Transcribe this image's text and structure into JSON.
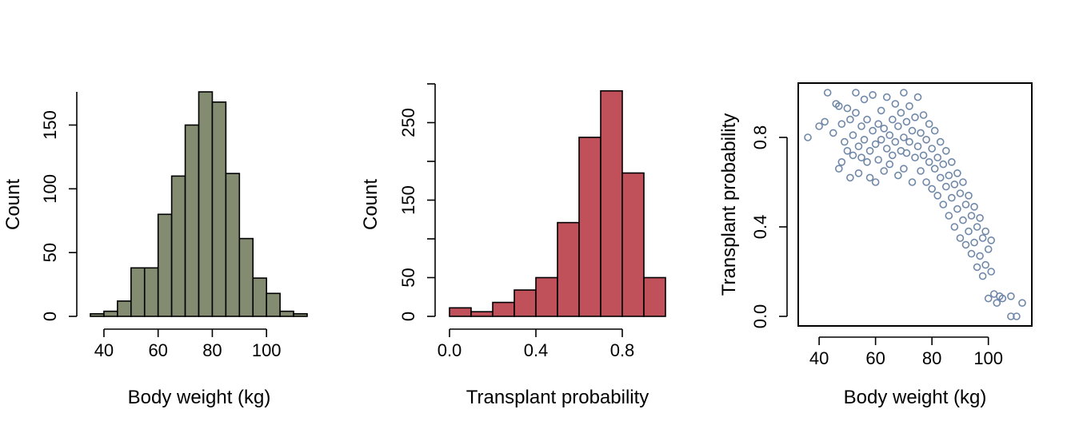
{
  "chart_data": [
    {
      "type": "bar",
      "subtype": "histogram",
      "title": "",
      "xlabel": "Body weight (kg)",
      "ylabel": "Count",
      "fill_color": "#838c70",
      "bin_edges": [
        35,
        40,
        45,
        50,
        55,
        60,
        65,
        70,
        75,
        80,
        85,
        90,
        95,
        100,
        105,
        110,
        115
      ],
      "values": [
        2,
        4,
        12,
        38,
        38,
        80,
        110,
        150,
        176,
        168,
        112,
        61,
        30,
        18,
        4,
        2
      ],
      "xlim": [
        35,
        115
      ],
      "ylim": [
        0,
        176
      ],
      "xticks": [
        40,
        60,
        80,
        100
      ],
      "yticks": [
        0,
        50,
        100,
        150
      ],
      "box": false
    },
    {
      "type": "bar",
      "subtype": "histogram",
      "title": "",
      "xlabel": "Transplant probability",
      "ylabel": "Count",
      "fill_color": "#c0505a",
      "bin_edges": [
        0.0,
        0.1,
        0.2,
        0.3,
        0.4,
        0.5,
        0.6,
        0.7,
        0.8,
        0.9,
        1.0
      ],
      "values": [
        11,
        6,
        18,
        34,
        50,
        121,
        231,
        291,
        185,
        50
      ],
      "xlim": [
        0,
        1
      ],
      "ylim": [
        0,
        300
      ],
      "xticks": [
        "0.0",
        "0.4",
        "0.8"
      ],
      "yticks": [
        0,
        50,
        150,
        250
      ],
      "box": false
    },
    {
      "type": "scatter",
      "title": "",
      "xlabel": "Body weight (kg)",
      "ylabel": "Transplant probability",
      "point_color": "#7088a8",
      "marker": "open-circle",
      "xlim": [
        36,
        112
      ],
      "ylim": [
        0,
        1
      ],
      "xticks": [
        40,
        60,
        80,
        100
      ],
      "yticks": [
        "0.0",
        "0.4",
        "0.8"
      ],
      "box": true,
      "points": [
        [
          36,
          0.8
        ],
        [
          40,
          0.85
        ],
        [
          42,
          0.87
        ],
        [
          43,
          1.0
        ],
        [
          45,
          0.82
        ],
        [
          46,
          0.95
        ],
        [
          47,
          0.94
        ],
        [
          47,
          0.66
        ],
        [
          48,
          0.69
        ],
        [
          48,
          0.86
        ],
        [
          49,
          0.78
        ],
        [
          50,
          0.93
        ],
        [
          50,
          0.74
        ],
        [
          51,
          0.62
        ],
        [
          51,
          0.88
        ],
        [
          52,
          0.72
        ],
        [
          52,
          0.81
        ],
        [
          53,
          0.91
        ],
        [
          53,
          1.0
        ],
        [
          54,
          0.76
        ],
        [
          54,
          0.64
        ],
        [
          55,
          0.85
        ],
        [
          55,
          0.71
        ],
        [
          56,
          0.79
        ],
        [
          56,
          0.97
        ],
        [
          57,
          0.69
        ],
        [
          57,
          0.88
        ],
        [
          58,
          0.62
        ],
        [
          58,
          0.74
        ],
        [
          59,
          0.83
        ],
        [
          59,
          0.99
        ],
        [
          60,
          0.77
        ],
        [
          60,
          0.6
        ],
        [
          61,
          0.86
        ],
        [
          61,
          0.7
        ],
        [
          62,
          0.92
        ],
        [
          62,
          0.79
        ],
        [
          63,
          0.65
        ],
        [
          63,
          0.84
        ],
        [
          64,
          0.75
        ],
        [
          64,
          0.98
        ],
        [
          65,
          0.81
        ],
        [
          65,
          0.68
        ],
        [
          66,
          0.88
        ],
        [
          66,
          0.72
        ],
        [
          67,
          0.95
        ],
        [
          67,
          0.78
        ],
        [
          68,
          0.63
        ],
        [
          68,
          0.85
        ],
        [
          69,
          0.74
        ],
        [
          69,
          0.91
        ],
        [
          70,
          0.8
        ],
        [
          70,
          1.0
        ],
        [
          70,
          0.66
        ],
        [
          71,
          0.87
        ],
        [
          71,
          0.73
        ],
        [
          72,
          0.94
        ],
        [
          72,
          0.78
        ],
        [
          73,
          0.6
        ],
        [
          73,
          0.83
        ],
        [
          74,
          0.71
        ],
        [
          74,
          0.89
        ],
        [
          75,
          0.76
        ],
        [
          75,
          0.98
        ],
        [
          76,
          0.65
        ],
        [
          76,
          0.82
        ],
        [
          77,
          0.72
        ],
        [
          77,
          0.9
        ],
        [
          78,
          0.6
        ],
        [
          78,
          0.79
        ],
        [
          79,
          0.69
        ],
        [
          79,
          0.86
        ],
        [
          80,
          0.57
        ],
        [
          80,
          0.75
        ],
        [
          81,
          0.66
        ],
        [
          81,
          0.83
        ],
        [
          82,
          0.54
        ],
        [
          82,
          0.71
        ],
        [
          83,
          0.62
        ],
        [
          83,
          0.78
        ],
        [
          84,
          0.5
        ],
        [
          84,
          0.68
        ],
        [
          85,
          0.58
        ],
        [
          85,
          0.74
        ],
        [
          86,
          0.45
        ],
        [
          86,
          0.63
        ],
        [
          87,
          0.53
        ],
        [
          87,
          0.69
        ],
        [
          88,
          0.4
        ],
        [
          88,
          0.59
        ],
        [
          89,
          0.48
        ],
        [
          89,
          0.64
        ],
        [
          90,
          0.35
        ],
        [
          90,
          0.55
        ],
        [
          91,
          0.43
        ],
        [
          91,
          0.6
        ],
        [
          92,
          0.32
        ],
        [
          92,
          0.5
        ],
        [
          93,
          0.38
        ],
        [
          93,
          0.54
        ],
        [
          94,
          0.28
        ],
        [
          94,
          0.45
        ],
        [
          95,
          0.33
        ],
        [
          95,
          0.49
        ],
        [
          96,
          0.22
        ],
        [
          96,
          0.4
        ],
        [
          97,
          0.27
        ],
        [
          97,
          0.44
        ],
        [
          98,
          0.18
        ],
        [
          98,
          0.35
        ],
        [
          99,
          0.23
        ],
        [
          99,
          0.38
        ],
        [
          100,
          0.08
        ],
        [
          100,
          0.3
        ],
        [
          101,
          0.2
        ],
        [
          101,
          0.34
        ],
        [
          102,
          0.1
        ],
        [
          103,
          0.06
        ],
        [
          104,
          0.09
        ],
        [
          105,
          0.08
        ],
        [
          108,
          0.0
        ],
        [
          108,
          0.09
        ],
        [
          110,
          0.0
        ],
        [
          112,
          0.06
        ]
      ]
    }
  ]
}
